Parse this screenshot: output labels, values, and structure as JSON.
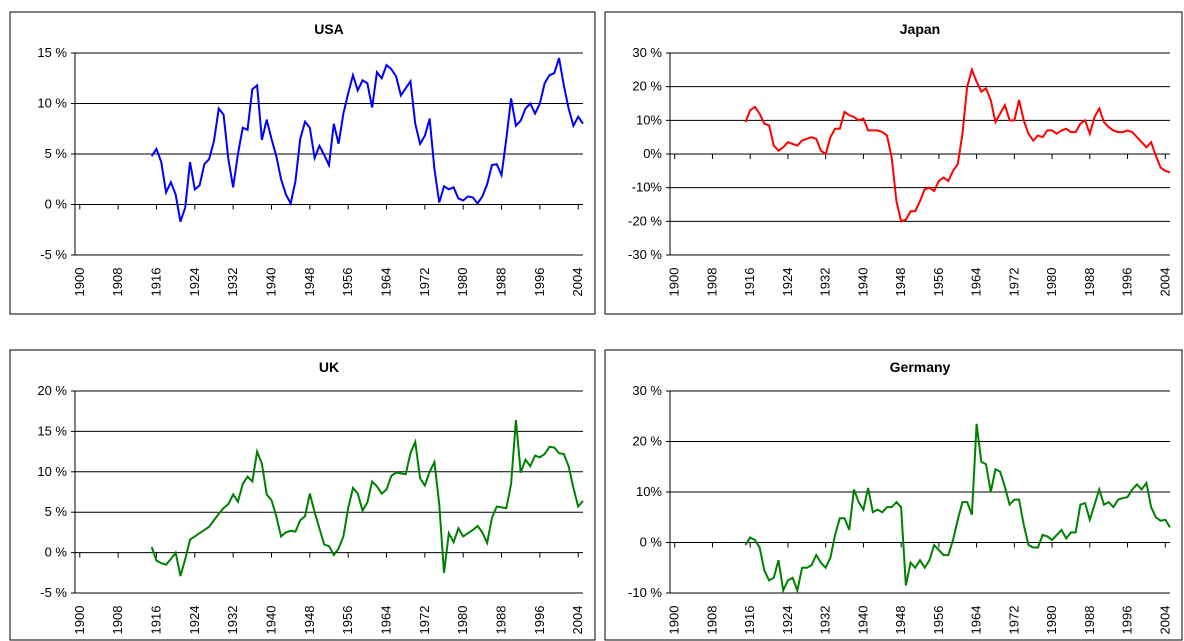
{
  "chart_data": [
    {
      "type": "line",
      "title": "USA",
      "color": "#0000ff",
      "x": [
        1915,
        1916,
        1917,
        1918,
        1919,
        1920,
        1921,
        1922,
        1923,
        1924,
        1925,
        1926,
        1927,
        1928,
        1929,
        1930,
        1931,
        1932,
        1933,
        1934,
        1935,
        1936,
        1937,
        1938,
        1939,
        1940,
        1941,
        1942,
        1943,
        1944,
        1945,
        1946,
        1947,
        1948,
        1949,
        1950,
        1951,
        1952,
        1953,
        1954,
        1955,
        1956,
        1957,
        1958,
        1959,
        1960,
        1961,
        1962,
        1963,
        1964,
        1965,
        1966,
        1967,
        1968,
        1969,
        1970,
        1971,
        1972,
        1973,
        1974,
        1975,
        1976,
        1977,
        1978,
        1979,
        1980,
        1981,
        1982,
        1983,
        1984,
        1985,
        1986,
        1987,
        1988,
        1989,
        1990,
        1991,
        1992,
        1993,
        1994,
        1995,
        1996,
        1997,
        1998,
        1999,
        2000,
        2001,
        2002,
        2003,
        2004,
        2005
      ],
      "values": [
        4.8,
        5.5,
        4.2,
        1.2,
        2.2,
        1.0,
        -1.7,
        -0.3,
        4.2,
        1.5,
        1.9,
        4.0,
        4.5,
        6.3,
        9.5,
        8.9,
        4.5,
        1.7,
        5.0,
        7.6,
        7.4,
        11.4,
        11.8,
        6.4,
        8.4,
        6.5,
        4.8,
        2.5,
        1.0,
        0.1,
        2.3,
        6.5,
        8.2,
        7.6,
        4.6,
        5.8,
        4.9,
        3.9,
        8.0,
        6.0,
        9.0,
        11.0,
        12.8,
        11.3,
        12.3,
        12.0,
        9.6,
        13.1,
        12.5,
        13.8,
        13.4,
        12.7,
        10.8,
        11.5,
        12.2,
        8.0,
        6.0,
        6.8,
        8.5,
        3.5,
        0.2,
        1.8,
        1.5,
        1.7,
        0.6,
        0.4,
        0.8,
        0.7,
        0.1,
        0.8,
        2.0,
        3.9,
        4.0,
        2.9,
        6.5,
        10.5,
        7.8,
        8.3,
        9.5,
        10.0,
        9.0,
        10.0,
        12.0,
        12.8,
        13.0,
        14.5,
        11.8,
        9.5,
        7.8,
        8.7,
        8.0
      ],
      "xlim": [
        1899,
        2005
      ],
      "xticks": [
        1900,
        1908,
        1916,
        1924,
        1932,
        1940,
        1948,
        1956,
        1964,
        1972,
        1980,
        1988,
        1996,
        2004
      ],
      "ylim": [
        -5,
        15
      ],
      "yticks": [
        {
          "value": -5,
          "label": "-5 %"
        },
        {
          "value": 0,
          "label": "0 %"
        },
        {
          "value": 5,
          "label": "5 %"
        },
        {
          "value": 10,
          "label": "10 %"
        },
        {
          "value": 15,
          "label": "15 %"
        }
      ],
      "grid": true
    },
    {
      "type": "line",
      "title": "Japan",
      "color": "#ff0000",
      "x": [
        1915,
        1916,
        1917,
        1918,
        1919,
        1920,
        1921,
        1922,
        1923,
        1924,
        1925,
        1926,
        1927,
        1928,
        1929,
        1930,
        1931,
        1932,
        1933,
        1934,
        1935,
        1936,
        1937,
        1938,
        1939,
        1940,
        1941,
        1942,
        1943,
        1944,
        1945,
        1946,
        1947,
        1948,
        1949,
        1950,
        1951,
        1952,
        1953,
        1954,
        1955,
        1956,
        1957,
        1958,
        1959,
        1960,
        1961,
        1962,
        1963,
        1964,
        1965,
        1966,
        1967,
        1968,
        1969,
        1970,
        1971,
        1972,
        1973,
        1974,
        1975,
        1976,
        1977,
        1978,
        1979,
        1980,
        1981,
        1982,
        1983,
        1984,
        1985,
        1986,
        1987,
        1988,
        1989,
        1990,
        1991,
        1992,
        1993,
        1994,
        1995,
        1996,
        1997,
        1998,
        1999,
        2000,
        2001,
        2002,
        2003,
        2004,
        2005
      ],
      "values": [
        9.5,
        13,
        14,
        12,
        9,
        8.5,
        2.5,
        1,
        2,
        3.5,
        3,
        2.5,
        4,
        4.5,
        5,
        4.5,
        1,
        0,
        5,
        7.5,
        7.5,
        12.5,
        11.5,
        11,
        10,
        10.5,
        7,
        7,
        7,
        6.5,
        5.5,
        -1,
        -14,
        -20,
        -19.5,
        -17,
        -17,
        -14,
        -10.5,
        -10,
        -11,
        -8,
        -7,
        -8,
        -5,
        -3,
        6,
        20,
        25,
        21.5,
        18.5,
        19.5,
        16,
        9.5,
        12,
        14.5,
        10,
        10,
        16,
        10,
        6,
        4,
        5.5,
        5,
        7,
        7,
        6,
        7,
        7.5,
        6.5,
        6.5,
        9,
        10,
        6,
        11,
        13.5,
        9.5,
        8,
        7,
        6.5,
        6.5,
        7,
        6.5,
        5,
        3.5,
        2,
        3.5,
        -0.5,
        -4,
        -5,
        -5.5
      ],
      "xlim": [
        1899,
        2005
      ],
      "xticks": [
        1900,
        1908,
        1916,
        1924,
        1932,
        1940,
        1948,
        1956,
        1964,
        1972,
        1980,
        1988,
        1996,
        2004
      ],
      "ylim": [
        -30,
        30
      ],
      "yticks": [
        {
          "value": -30,
          "label": "-30 %"
        },
        {
          "value": -20,
          "label": "-20 %"
        },
        {
          "value": -10,
          "label": "-10%"
        },
        {
          "value": 0,
          "label": "0%"
        },
        {
          "value": 10,
          "label": "10%"
        },
        {
          "value": 20,
          "label": "20 %"
        },
        {
          "value": 30,
          "label": "30 %"
        }
      ],
      "grid": true
    },
    {
      "type": "line",
      "title": "UK",
      "color": "#008000",
      "x": [
        1915,
        1916,
        1917,
        1918,
        1919,
        1920,
        1921,
        1922,
        1923,
        1924,
        1925,
        1926,
        1927,
        1928,
        1929,
        1930,
        1931,
        1932,
        1933,
        1934,
        1935,
        1936,
        1937,
        1938,
        1939,
        1940,
        1941,
        1942,
        1943,
        1944,
        1945,
        1946,
        1947,
        1948,
        1949,
        1950,
        1951,
        1952,
        1953,
        1954,
        1955,
        1956,
        1957,
        1958,
        1959,
        1960,
        1961,
        1962,
        1963,
        1964,
        1965,
        1966,
        1967,
        1968,
        1969,
        1970,
        1971,
        1972,
        1973,
        1974,
        1975,
        1976,
        1977,
        1978,
        1979,
        1980,
        1981,
        1982,
        1983,
        1984,
        1985,
        1986,
        1987,
        1988,
        1989,
        1990,
        1991,
        1992,
        1993,
        1994,
        1995,
        1996,
        1997,
        1998,
        1999,
        2000,
        2001,
        2002,
        2003,
        2004,
        2005
      ],
      "values": [
        0.7,
        -1.0,
        -1.3,
        -1.5,
        -0.8,
        0,
        -2.9,
        -0.8,
        1.6,
        2.0,
        2.4,
        2.8,
        3.2,
        4.0,
        4.8,
        5.5,
        6.0,
        7.2,
        6.3,
        8.5,
        9.4,
        8.8,
        12.5,
        11.0,
        7.2,
        6.5,
        4.5,
        2.0,
        2.5,
        2.7,
        2.6,
        4.0,
        4.5,
        7.3,
        5.0,
        3.0,
        1.0,
        0.8,
        -0.3,
        0.5,
        2.0,
        5.5,
        8.0,
        7.3,
        5.2,
        6.2,
        8.8,
        8.2,
        7.3,
        7.8,
        9.5,
        9.9,
        9.8,
        9.7,
        12.3,
        13.7,
        9.2,
        8.3,
        10.0,
        11.2,
        6.0,
        -2.5,
        2.4,
        1.3,
        3.0,
        2.0,
        2.4,
        2.8,
        3.3,
        2.5,
        1.2,
        4.3,
        5.7,
        5.6,
        5.5,
        8.5,
        16.4,
        9.9,
        11.5,
        10.7,
        12.0,
        11.8,
        12.2,
        13.1,
        13.0,
        12.3,
        12.2,
        10.7,
        8.0,
        5.7,
        6.4
      ],
      "xlim": [
        1899,
        2005
      ],
      "xticks": [
        1900,
        1908,
        1916,
        1924,
        1932,
        1940,
        1948,
        1956,
        1964,
        1972,
        1980,
        1988,
        1996,
        2004
      ],
      "ylim": [
        -5,
        20
      ],
      "yticks": [
        {
          "value": -5,
          "label": "-5 %"
        },
        {
          "value": 0,
          "label": "0 %"
        },
        {
          "value": 5,
          "label": "5 %"
        },
        {
          "value": 10,
          "label": "10 %"
        },
        {
          "value": 15,
          "label": "15 %"
        },
        {
          "value": 20,
          "label": "20 %"
        }
      ],
      "grid": true
    },
    {
      "type": "line",
      "title": "Germany",
      "color": "#008000",
      "x": [
        1915,
        1916,
        1917,
        1918,
        1919,
        1920,
        1921,
        1922,
        1923,
        1924,
        1925,
        1926,
        1927,
        1928,
        1929,
        1930,
        1931,
        1932,
        1933,
        1934,
        1935,
        1936,
        1937,
        1938,
        1939,
        1940,
        1941,
        1942,
        1943,
        1944,
        1945,
        1946,
        1947,
        1948,
        1949,
        1950,
        1951,
        1952,
        1953,
        1954,
        1955,
        1956,
        1957,
        1958,
        1959,
        1960,
        1961,
        1962,
        1963,
        1964,
        1965,
        1966,
        1967,
        1968,
        1969,
        1970,
        1971,
        1972,
        1973,
        1974,
        1975,
        1976,
        1977,
        1978,
        1979,
        1980,
        1981,
        1982,
        1983,
        1984,
        1985,
        1986,
        1987,
        1988,
        1989,
        1990,
        1991,
        1992,
        1993,
        1994,
        1995,
        1996,
        1997,
        1998,
        1999,
        2000,
        2001,
        2002,
        2003,
        2004,
        2005
      ],
      "values": [
        -0.5,
        1.0,
        0.5,
        -1,
        -5.5,
        -7.5,
        -7,
        -3.5,
        -9.5,
        -7.5,
        -7,
        -9.5,
        -5,
        -5,
        -4.5,
        -2.5,
        -4,
        -5,
        -3,
        1.5,
        4.8,
        4.8,
        2.5,
        10.5,
        8,
        6.5,
        10.8,
        6,
        6.5,
        6,
        7,
        7,
        8,
        7,
        -8.5,
        -4,
        -5,
        -3.5,
        -5,
        -3.5,
        -0.5,
        -1.5,
        -2.5,
        -2.5,
        0.5,
        4.5,
        8,
        8,
        5.5,
        23.5,
        16,
        15.5,
        10,
        14.5,
        14,
        11,
        7.5,
        8.5,
        8.5,
        3.5,
        -0.5,
        -1,
        -1,
        1.5,
        1.2,
        0.5,
        1.5,
        2.5,
        0.8,
        2,
        2,
        7.5,
        7.8,
        4.5,
        7.5,
        10.5,
        7.5,
        8,
        7,
        8.5,
        8.8,
        9,
        10.5,
        11.5,
        10.5,
        11.8,
        7,
        5,
        4.3,
        4.5,
        3
      ],
      "xlim": [
        1899,
        2005
      ],
      "xticks": [
        1900,
        1908,
        1916,
        1924,
        1932,
        1940,
        1948,
        1956,
        1964,
        1972,
        1980,
        1988,
        1996,
        2004
      ],
      "ylim": [
        -10,
        30
      ],
      "yticks": [
        {
          "value": -10,
          "label": "-10 %"
        },
        {
          "value": 0,
          "label": "0 %"
        },
        {
          "value": 10,
          "label": "10%"
        },
        {
          "value": 20,
          "label": "20 %"
        },
        {
          "value": 30,
          "label": "30 %"
        }
      ],
      "grid": true
    }
  ]
}
